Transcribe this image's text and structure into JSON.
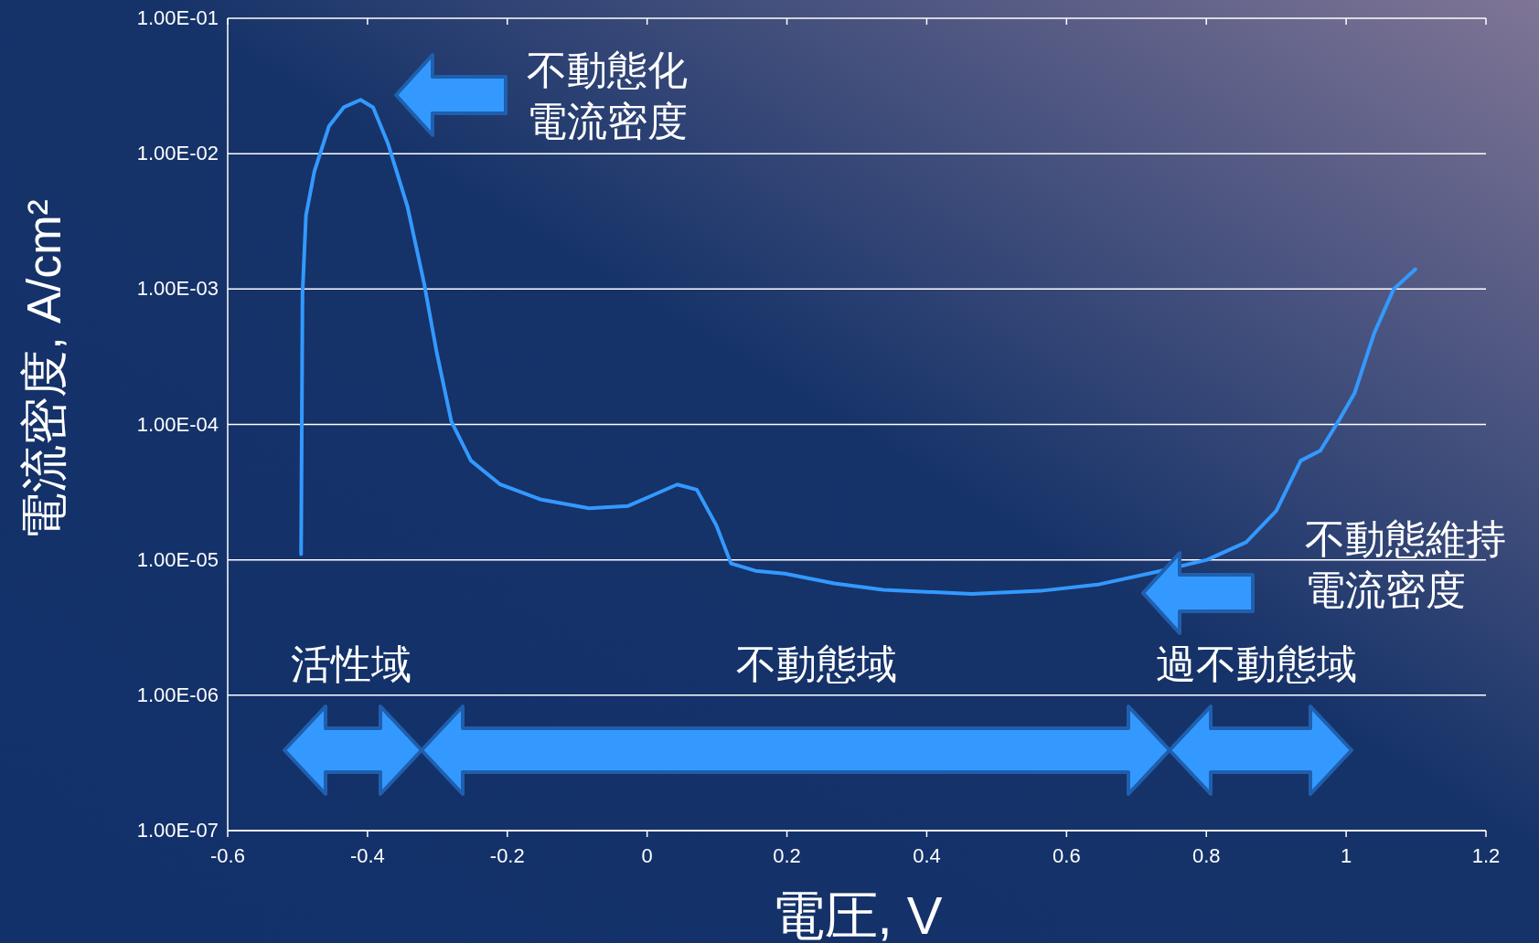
{
  "chart_data": {
    "type": "line",
    "xlabel": "電圧, V",
    "ylabel": "電流密度, A/cm²",
    "log": "y",
    "xlim": [
      -0.6,
      1.2
    ],
    "xticks": [
      -0.6,
      -0.4,
      -0.2,
      0,
      0.2,
      0.4,
      0.6,
      0.8,
      1,
      1.2
    ],
    "ylim": [
      1e-07,
      0.1
    ],
    "yticks": [
      {
        "value": 1e-07,
        "label": "1.00E-07"
      },
      {
        "value": 1e-06,
        "label": "1.00E-06"
      },
      {
        "value": 1e-05,
        "label": "1.00E-05"
      },
      {
        "value": 0.0001,
        "label": "1.00E-04"
      },
      {
        "value": 0.001,
        "label": "1.00E-03"
      },
      {
        "value": 0.01,
        "label": "1.00E-02"
      },
      {
        "value": 0.1,
        "label": "1.00E-01"
      }
    ],
    "grid": "y",
    "line_style": "solid",
    "series": [
      {
        "color": "#3399ff",
        "x": [
          -0.495,
          -0.493,
          -0.488,
          -0.476,
          -0.455,
          -0.434,
          -0.41,
          -0.392,
          -0.371,
          -0.343,
          -0.319,
          -0.301,
          -0.28,
          -0.252,
          -0.21,
          -0.153,
          -0.083,
          -0.027,
          0.008,
          0.043,
          0.071,
          0.099,
          0.12,
          0.155,
          0.197,
          0.268,
          0.338,
          0.464,
          0.563,
          0.647,
          0.731,
          0.801,
          0.857,
          0.9,
          0.935,
          0.963,
          0.991,
          1.012,
          1.04,
          1.068,
          1.099
        ],
        "values": [
          1.1e-05,
          0.00092,
          0.0035,
          0.0074,
          0.016,
          0.022,
          0.025,
          0.022,
          0.012,
          0.0041,
          0.0011,
          0.00034,
          0.000105,
          5.4e-05,
          3.6e-05,
          2.8e-05,
          2.4e-05,
          2.5e-05,
          3e-05,
          3.6e-05,
          3.3e-05,
          1.8e-05,
          9.4e-06,
          8.3e-06,
          7.9e-06,
          6.7e-06,
          6e-06,
          5.6e-06,
          5.9e-06,
          6.6e-06,
          8.2e-06,
          1e-05,
          1.35e-05,
          2.3e-05,
          5.4e-05,
          6.4e-05,
          0.00011,
          0.00017,
          0.00047,
          0.001,
          0.0014
        ]
      }
    ],
    "annotations": [
      "不動態化電流密度",
      "不動態維持電流密度",
      "活性域",
      "不動態域",
      "過不動態域"
    ]
  }
}
